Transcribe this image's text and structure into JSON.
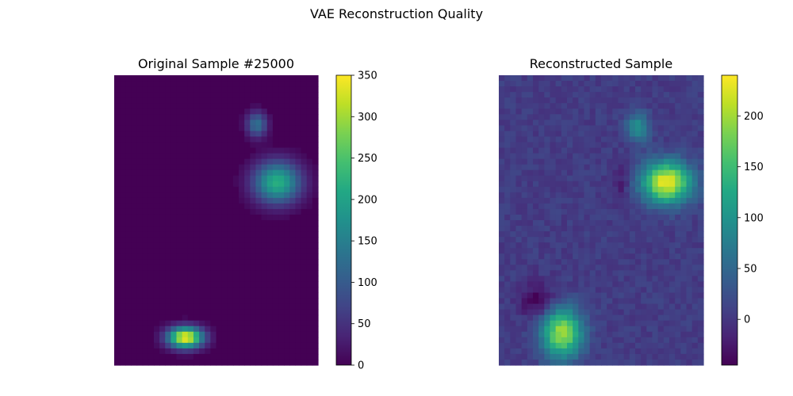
{
  "figure": {
    "title": "VAE Reconstruction Quality"
  },
  "chart_data": [
    {
      "type": "heatmap",
      "title": "Original Sample #25000",
      "colormap": "viridis",
      "colorbar": {
        "min": 0,
        "max": 350,
        "ticks": [
          0,
          50,
          100,
          150,
          200,
          250,
          300,
          350
        ]
      },
      "background_value": 0,
      "blobs": [
        {
          "label": "upper-right small",
          "cx": 0.7,
          "cy": 0.17,
          "sx": 0.035,
          "sy": 0.03,
          "value": 130
        },
        {
          "label": "upper-right main",
          "cx": 0.8,
          "cy": 0.37,
          "sx": 0.08,
          "sy": 0.05,
          "value": 220
        },
        {
          "label": "bottom-left",
          "cx": 0.35,
          "cy": 0.905,
          "sx": 0.06,
          "sy": 0.025,
          "value": 350
        }
      ]
    },
    {
      "type": "heatmap",
      "title": "Reconstructed Sample",
      "colormap": "viridis",
      "colorbar": {
        "min": -45,
        "max": 240,
        "ticks": [
          0,
          50,
          100,
          150,
          200
        ]
      },
      "background_value": 5,
      "blobs": [
        {
          "label": "upper-right small",
          "cx": 0.68,
          "cy": 0.18,
          "sx": 0.04,
          "sy": 0.035,
          "value": 95
        },
        {
          "label": "upper-right main",
          "cx": 0.82,
          "cy": 0.37,
          "sx": 0.085,
          "sy": 0.05,
          "value": 235
        },
        {
          "label": "bottom-left",
          "cx": 0.31,
          "cy": 0.89,
          "sx": 0.07,
          "sy": 0.06,
          "value": 200
        },
        {
          "label": "left dark",
          "cx": 0.19,
          "cy": 0.78,
          "sx": 0.06,
          "sy": 0.045,
          "value": -45
        },
        {
          "label": "center dark",
          "cx": 0.6,
          "cy": 0.37,
          "sx": 0.03,
          "sy": 0.05,
          "value": -25
        }
      ]
    }
  ]
}
